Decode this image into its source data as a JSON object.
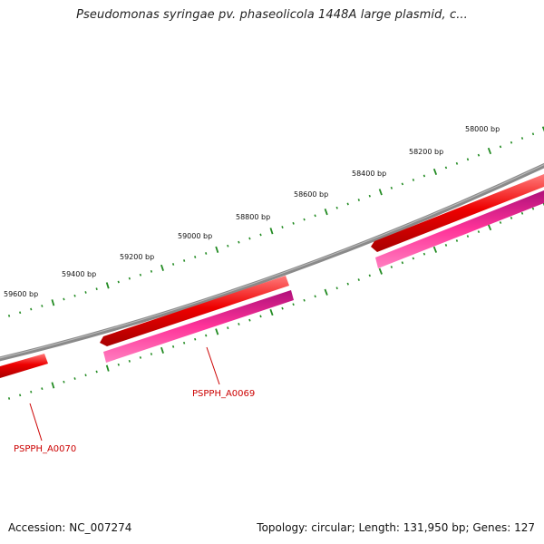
{
  "title": "Pseudomonas syringae pv. phaseolicola 1448A large plasmid, c...",
  "footer": {
    "accession": "Accession: NC_007274",
    "summary": "Topology: circular; Length: 131,950 bp; Genes: 127"
  },
  "scale_labels": [
    "58000 bp",
    "58200 bp",
    "58400 bp",
    "58600 bp",
    "58800 bp",
    "59000 bp",
    "59200 bp",
    "59400 bp",
    "59600 bp"
  ],
  "gene_labels": [
    "PSPPH_A0069",
    "PSPPH_A0070"
  ],
  "colors": {
    "backbone": "#808080",
    "gene_red": "#ee0000",
    "gene_pink": "#ff3399",
    "label_red": "#cc0000",
    "tick_green": "#228b22"
  }
}
